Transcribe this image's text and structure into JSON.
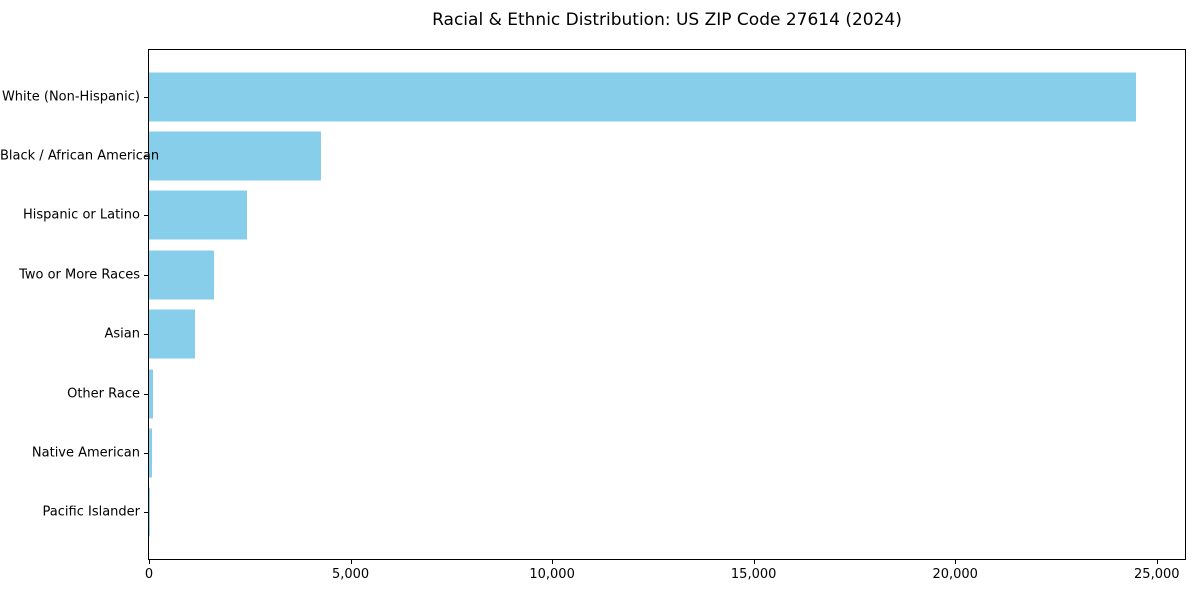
{
  "chart_data": {
    "type": "bar",
    "orientation": "horizontal",
    "title": "Racial & Ethnic Distribution: US ZIP Code 27614 (2024)",
    "categories": [
      "White (Non-Hispanic)",
      "Black / African American",
      "Hispanic or Latino",
      "Two or More Races",
      "Asian",
      "Other Race",
      "Native American",
      "Pacific Islander"
    ],
    "values": [
      24480,
      4270,
      2430,
      1610,
      1150,
      110,
      65,
      10
    ],
    "bar_color": "#87CEEB",
    "xlabel": "",
    "ylabel": "",
    "xlim": [
      0,
      25700
    ],
    "x_ticks": [
      {
        "value": 0,
        "label": "0"
      },
      {
        "value": 5000,
        "label": "5,000"
      },
      {
        "value": 10000,
        "label": "10,000"
      },
      {
        "value": 15000,
        "label": "15,000"
      },
      {
        "value": 20000,
        "label": "20,000"
      },
      {
        "value": 25000,
        "label": "25,000"
      }
    ],
    "grid": false,
    "legend": null,
    "text_color": "#000000",
    "spine_color": "#000000"
  }
}
